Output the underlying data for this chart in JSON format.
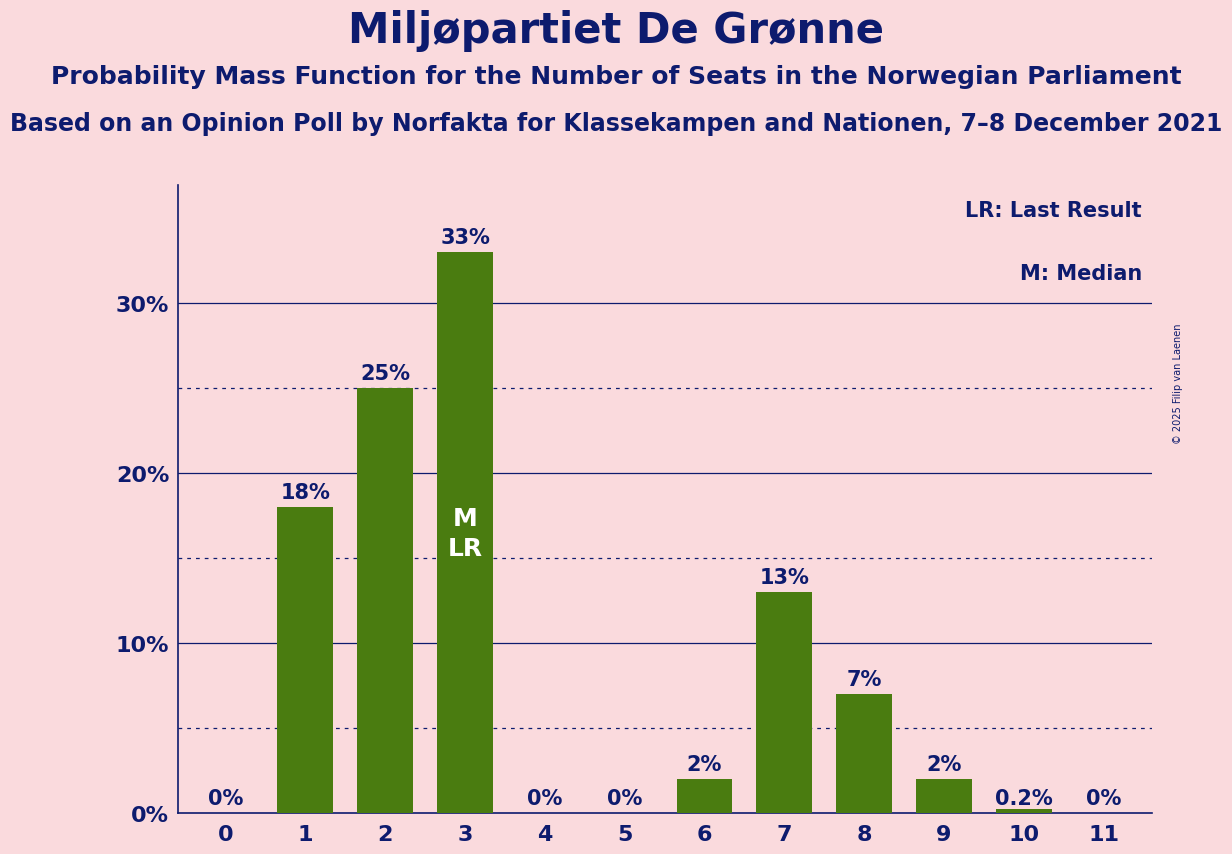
{
  "title": "Miljøpartiet De Grønne",
  "subtitle1": "Probability Mass Function for the Number of Seats in the Norwegian Parliament",
  "subtitle2": "Based on an Opinion Poll by Norfakta for Klassekampen and Nationen, 7–8 December 2021",
  "copyright": "© 2025 Filip van Laenen",
  "categories": [
    0,
    1,
    2,
    3,
    4,
    5,
    6,
    7,
    8,
    9,
    10,
    11
  ],
  "values": [
    0.0,
    0.18,
    0.25,
    0.33,
    0.0,
    0.0,
    0.02,
    0.13,
    0.07,
    0.02,
    0.002,
    0.0
  ],
  "bar_labels": [
    "0%",
    "18%",
    "25%",
    "33%",
    "0%",
    "0%",
    "2%",
    "13%",
    "7%",
    "2%",
    "0.2%",
    "0%"
  ],
  "bar_color": "#4a7c10",
  "background_color": "#fadadd",
  "text_color": "#0d1b6e",
  "grid_color": "#0d1b6e",
  "legend_lr": "LR: Last Result",
  "legend_m": "M: Median",
  "yticks": [
    0.0,
    0.1,
    0.2,
    0.3
  ],
  "ytick_labels": [
    "0%",
    "10%",
    "20%",
    "30%"
  ],
  "ylim": [
    0,
    0.37
  ],
  "title_fontsize": 30,
  "subtitle1_fontsize": 18,
  "subtitle2_fontsize": 17,
  "label_fontsize": 15,
  "tick_fontsize": 16,
  "legend_fontsize": 15
}
